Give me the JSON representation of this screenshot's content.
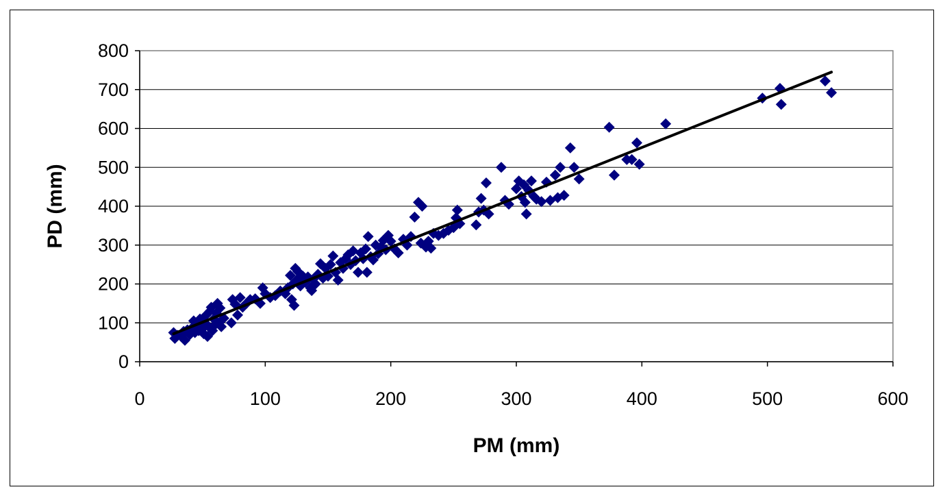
{
  "chart_data": {
    "type": "scatter",
    "title": "",
    "xlabel": "PM (mm)",
    "ylabel": "PD (mm)",
    "xlim": [
      0,
      600
    ],
    "ylim": [
      0,
      800
    ],
    "xticks": [
      0,
      100,
      200,
      300,
      400,
      500,
      600
    ],
    "yticks": [
      0,
      100,
      200,
      300,
      400,
      500,
      600,
      700,
      800
    ],
    "grid": "horizontal",
    "legend": "none",
    "marker": "diamond",
    "colors": {
      "points": "#000080",
      "trendline": "#000000",
      "gridline": "#000000",
      "plot_border": "#808080"
    },
    "trendline": {
      "x": [
        27,
        551
      ],
      "y": [
        72,
        745
      ]
    },
    "series": [
      {
        "points": [
          [
            27,
            75
          ],
          [
            28,
            60
          ],
          [
            30,
            68
          ],
          [
            33,
            65
          ],
          [
            35,
            78
          ],
          [
            36,
            55
          ],
          [
            38,
            82
          ],
          [
            40,
            70
          ],
          [
            42,
            88
          ],
          [
            43,
            105
          ],
          [
            44,
            75
          ],
          [
            46,
            95
          ],
          [
            47,
            80
          ],
          [
            48,
            110
          ],
          [
            50,
            85
          ],
          [
            51,
            72
          ],
          [
            52,
            100
          ],
          [
            53,
            120
          ],
          [
            54,
            65
          ],
          [
            55,
            90
          ],
          [
            56,
            130
          ],
          [
            57,
            140
          ],
          [
            58,
            80
          ],
          [
            59,
            110
          ],
          [
            60,
            95
          ],
          [
            61,
            125
          ],
          [
            62,
            150
          ],
          [
            63,
            100
          ],
          [
            64,
            138
          ],
          [
            65,
            90
          ],
          [
            67,
            112
          ],
          [
            73,
            100
          ],
          [
            74,
            160
          ],
          [
            76,
            148
          ],
          [
            78,
            120
          ],
          [
            80,
            165
          ],
          [
            82,
            140
          ],
          [
            85,
            150
          ],
          [
            88,
            160
          ],
          [
            92,
            162
          ],
          [
            96,
            150
          ],
          [
            98,
            190
          ],
          [
            100,
            175
          ],
          [
            104,
            165
          ],
          [
            108,
            170
          ],
          [
            112,
            182
          ],
          [
            116,
            175
          ],
          [
            118,
            190
          ],
          [
            120,
            222
          ],
          [
            121,
            160
          ],
          [
            122,
            200
          ],
          [
            123,
            145
          ],
          [
            124,
            240
          ],
          [
            125,
            210
          ],
          [
            126,
            232
          ],
          [
            128,
            195
          ],
          [
            130,
            220
          ],
          [
            132,
            205
          ],
          [
            134,
            218
          ],
          [
            136,
            190
          ],
          [
            137,
            183
          ],
          [
            138,
            212
          ],
          [
            140,
            200
          ],
          [
            142,
            225
          ],
          [
            144,
            252
          ],
          [
            146,
            215
          ],
          [
            148,
            240
          ],
          [
            150,
            220
          ],
          [
            152,
            250
          ],
          [
            154,
            272
          ],
          [
            156,
            230
          ],
          [
            158,
            210
          ],
          [
            160,
            255
          ],
          [
            162,
            240
          ],
          [
            164,
            265
          ],
          [
            166,
            275
          ],
          [
            168,
            250
          ],
          [
            170,
            285
          ],
          [
            172,
            260
          ],
          [
            174,
            230
          ],
          [
            176,
            280
          ],
          [
            178,
            265
          ],
          [
            180,
            290
          ],
          [
            181,
            230
          ],
          [
            182,
            322
          ],
          [
            184,
            270
          ],
          [
            186,
            262
          ],
          [
            188,
            300
          ],
          [
            190,
            278
          ],
          [
            192,
            295
          ],
          [
            194,
            312
          ],
          [
            196,
            288
          ],
          [
            198,
            325
          ],
          [
            200,
            310
          ],
          [
            203,
            290
          ],
          [
            206,
            280
          ],
          [
            210,
            315
          ],
          [
            213,
            300
          ],
          [
            216,
            322
          ],
          [
            219,
            372
          ],
          [
            222,
            410
          ],
          [
            224,
            305
          ],
          [
            225,
            400
          ],
          [
            228,
            295
          ],
          [
            230,
            310
          ],
          [
            232,
            292
          ],
          [
            234,
            330
          ],
          [
            238,
            325
          ],
          [
            242,
            330
          ],
          [
            246,
            338
          ],
          [
            250,
            345
          ],
          [
            252,
            370
          ],
          [
            253,
            390
          ],
          [
            255,
            355
          ],
          [
            268,
            352
          ],
          [
            270,
            385
          ],
          [
            272,
            420
          ],
          [
            274,
            390
          ],
          [
            276,
            460
          ],
          [
            278,
            380
          ],
          [
            288,
            500
          ],
          [
            291,
            415
          ],
          [
            294,
            405
          ],
          [
            300,
            445
          ],
          [
            302,
            465
          ],
          [
            304,
            425
          ],
          [
            306,
            455
          ],
          [
            307,
            410
          ],
          [
            308,
            380
          ],
          [
            310,
            440
          ],
          [
            312,
            465
          ],
          [
            314,
            425
          ],
          [
            316,
            418
          ],
          [
            320,
            412
          ],
          [
            324,
            462
          ],
          [
            327,
            415
          ],
          [
            331,
            480
          ],
          [
            333,
            422
          ],
          [
            335,
            500
          ],
          [
            338,
            428
          ],
          [
            343,
            550
          ],
          [
            346,
            500
          ],
          [
            350,
            470
          ],
          [
            374,
            603
          ],
          [
            378,
            480
          ],
          [
            388,
            520
          ],
          [
            392,
            520
          ],
          [
            396,
            563
          ],
          [
            398,
            508
          ],
          [
            419,
            612
          ],
          [
            496,
            678
          ],
          [
            510,
            703
          ],
          [
            511,
            662
          ],
          [
            546,
            722
          ],
          [
            551,
            692
          ]
        ]
      }
    ]
  }
}
